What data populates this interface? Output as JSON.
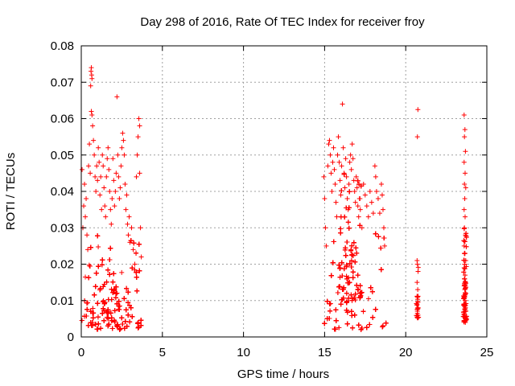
{
  "chart_data": {
    "type": "scatter",
    "title": "Day 298 of 2016, Rate Of TEC Index for receiver froy",
    "xlabel": "GPS time / hours",
    "ylabel": "ROTI / TECUs",
    "xlim": [
      0,
      25
    ],
    "ylim": [
      0,
      0.08
    ],
    "xticks": [
      0,
      5,
      10,
      15,
      20,
      25
    ],
    "yticks": [
      0,
      0.01,
      0.02,
      0.03,
      0.04,
      0.05,
      0.06,
      0.07,
      0.08
    ],
    "xtick_labels": [
      "0",
      "5",
      "10",
      "15",
      "20",
      "25"
    ],
    "ytick_labels": [
      "0",
      "0.01",
      "0.02",
      "0.03",
      "0.04",
      "0.05",
      "0.06",
      "0.07",
      "0.08"
    ],
    "grid": true,
    "marker": "+",
    "color": "#ff0000",
    "series": [
      {
        "name": "ROTI",
        "points": [
          [
            0.05,
            0.046
          ],
          [
            0.1,
            0.03
          ],
          [
            0.15,
            0.036
          ],
          [
            0.2,
            0.042
          ],
          [
            0.25,
            0.033
          ],
          [
            0.3,
            0.038
          ],
          [
            0.35,
            0.028
          ],
          [
            0.4,
            0.024
          ],
          [
            0.45,
            0.047
          ],
          [
            0.5,
            0.053
          ],
          [
            0.55,
            0.045
          ],
          [
            0.58,
            0.069
          ],
          [
            0.6,
            0.073
          ],
          [
            0.62,
            0.074
          ],
          [
            0.64,
            0.072
          ],
          [
            0.66,
            0.071
          ],
          [
            0.62,
            0.062
          ],
          [
            0.66,
            0.061
          ],
          [
            0.7,
            0.058
          ],
          [
            0.75,
            0.054
          ],
          [
            0.8,
            0.05
          ],
          [
            0.85,
            0.044
          ],
          [
            0.9,
            0.04
          ],
          [
            0.95,
            0.047
          ],
          [
            1.0,
            0.043
          ],
          [
            1.05,
            0.052
          ],
          [
            1.1,
            0.048
          ],
          [
            1.15,
            0.039
          ],
          [
            1.2,
            0.044
          ],
          [
            1.25,
            0.035
          ],
          [
            1.3,
            0.05
          ],
          [
            1.35,
            0.047
          ],
          [
            1.4,
            0.041
          ],
          [
            1.45,
            0.036
          ],
          [
            1.5,
            0.033
          ],
          [
            1.55,
            0.044
          ],
          [
            1.6,
            0.049
          ],
          [
            1.65,
            0.052
          ],
          [
            1.7,
            0.046
          ],
          [
            1.75,
            0.04
          ],
          [
            1.8,
            0.035
          ],
          [
            1.85,
            0.031
          ],
          [
            1.9,
            0.038
          ],
          [
            1.95,
            0.049
          ],
          [
            2.0,
            0.043
          ],
          [
            2.05,
            0.036
          ],
          [
            2.1,
            0.04
          ],
          [
            2.15,
            0.045
          ],
          [
            2.2,
            0.066
          ],
          [
            2.25,
            0.05
          ],
          [
            2.3,
            0.044
          ],
          [
            2.35,
            0.038
          ],
          [
            2.4,
            0.041
          ],
          [
            2.45,
            0.047
          ],
          [
            2.5,
            0.052
          ],
          [
            2.55,
            0.056
          ],
          [
            2.6,
            0.054
          ],
          [
            2.65,
            0.05
          ],
          [
            2.7,
            0.042
          ],
          [
            2.75,
            0.035
          ],
          [
            2.8,
            0.039
          ],
          [
            2.85,
            0.031
          ],
          [
            2.9,
            0.028
          ],
          [
            2.95,
            0.033
          ],
          [
            3.0,
            0.026
          ],
          [
            3.1,
            0.03
          ],
          [
            3.2,
            0.024
          ],
          [
            3.3,
            0.02
          ],
          [
            3.4,
            0.044
          ],
          [
            3.45,
            0.05
          ],
          [
            3.5,
            0.055
          ],
          [
            3.55,
            0.06
          ],
          [
            3.6,
            0.058
          ],
          [
            3.6,
            0.045
          ],
          [
            3.65,
            0.03
          ],
          [
            3.7,
            0.022
          ],
          [
            14.95,
            0.044
          ],
          [
            15.0,
            0.038
          ],
          [
            15.05,
            0.03
          ],
          [
            15.1,
            0.025
          ],
          [
            15.2,
            0.047
          ],
          [
            15.25,
            0.053
          ],
          [
            15.3,
            0.054
          ],
          [
            15.35,
            0.05
          ],
          [
            15.4,
            0.045
          ],
          [
            15.45,
            0.04
          ],
          [
            15.5,
            0.048
          ],
          [
            15.55,
            0.052
          ],
          [
            15.6,
            0.046
          ],
          [
            15.65,
            0.042
          ],
          [
            15.7,
            0.037
          ],
          [
            15.75,
            0.033
          ],
          [
            15.8,
            0.05
          ],
          [
            15.85,
            0.055
          ],
          [
            15.9,
            0.048
          ],
          [
            15.95,
            0.043
          ],
          [
            16.0,
            0.039
          ],
          [
            16.05,
            0.047
          ],
          [
            16.1,
            0.064
          ],
          [
            16.15,
            0.052
          ],
          [
            16.2,
            0.045
          ],
          [
            16.25,
            0.041
          ],
          [
            16.3,
            0.049
          ],
          [
            16.35,
            0.044
          ],
          [
            16.4,
            0.038
          ],
          [
            16.45,
            0.035
          ],
          [
            16.5,
            0.042
          ],
          [
            16.55,
            0.048
          ],
          [
            16.6,
            0.05
          ],
          [
            16.65,
            0.046
          ],
          [
            16.7,
            0.053
          ],
          [
            16.75,
            0.049
          ],
          [
            16.8,
            0.043
          ],
          [
            16.85,
            0.04
          ],
          [
            16.9,
            0.037
          ],
          [
            16.95,
            0.044
          ],
          [
            17.0,
            0.041
          ],
          [
            17.05,
            0.036
          ],
          [
            17.1,
            0.033
          ],
          [
            17.15,
            0.038
          ],
          [
            17.2,
            0.035
          ],
          [
            17.3,
            0.03
          ],
          [
            17.4,
            0.042
          ],
          [
            17.5,
            0.039
          ],
          [
            17.6,
            0.036
          ],
          [
            17.7,
            0.033
          ],
          [
            17.8,
            0.04
          ],
          [
            17.9,
            0.037
          ],
          [
            18.0,
            0.034
          ],
          [
            18.1,
            0.047
          ],
          [
            18.15,
            0.044
          ],
          [
            18.2,
            0.04
          ],
          [
            18.3,
            0.038
          ],
          [
            18.4,
            0.034
          ],
          [
            18.5,
            0.042
          ],
          [
            18.55,
            0.039
          ],
          [
            18.6,
            0.035
          ],
          [
            18.65,
            0.03
          ],
          [
            18.7,
            0.025
          ],
          [
            20.75,
            0.0625
          ],
          [
            20.72,
            0.055
          ],
          [
            20.7,
            0.021
          ],
          [
            20.72,
            0.02
          ],
          [
            20.76,
            0.018
          ],
          [
            20.7,
            0.015
          ],
          [
            20.74,
            0.013
          ],
          [
            20.72,
            0.011
          ],
          [
            20.7,
            0.009
          ],
          [
            20.74,
            0.008
          ],
          [
            20.72,
            0.0065
          ],
          [
            20.76,
            0.006
          ],
          [
            20.7,
            0.0055
          ],
          [
            23.6,
            0.061
          ],
          [
            23.65,
            0.057
          ],
          [
            23.62,
            0.055
          ],
          [
            23.68,
            0.051
          ],
          [
            23.6,
            0.048
          ],
          [
            23.66,
            0.045
          ],
          [
            23.62,
            0.042
          ],
          [
            23.7,
            0.041
          ],
          [
            23.64,
            0.038
          ],
          [
            23.6,
            0.035
          ],
          [
            23.66,
            0.033
          ],
          [
            23.62,
            0.03
          ],
          [
            23.68,
            0.028
          ],
          [
            23.6,
            0.025
          ],
          [
            23.64,
            0.023
          ],
          [
            23.7,
            0.021
          ],
          [
            23.6,
            0.019
          ],
          [
            23.66,
            0.017
          ],
          [
            23.62,
            0.016
          ],
          [
            23.68,
            0.015
          ],
          [
            23.6,
            0.014
          ],
          [
            23.64,
            0.013
          ],
          [
            23.7,
            0.012
          ],
          [
            23.62,
            0.011
          ],
          [
            23.66,
            0.01
          ],
          [
            23.6,
            0.009
          ],
          [
            23.68,
            0.008
          ],
          [
            23.64,
            0.007
          ],
          [
            23.6,
            0.006
          ],
          [
            23.7,
            0.005
          ],
          [
            23.66,
            0.0045
          ]
        ],
        "dense_regions": [
          {
            "x": [
              0.0,
              3.7
            ],
            "y": [
              0.003,
              0.028
            ],
            "count": 900
          },
          {
            "x": [
              0.4,
              3.7
            ],
            "y": [
              0.002,
              0.02
            ],
            "count": 500
          },
          {
            "x": [
              14.95,
              18.8
            ],
            "y": [
              0.002,
              0.03
            ],
            "count": 900
          },
          {
            "x": [
              15.8,
              17.3
            ],
            "y": [
              0.01,
              0.045
            ],
            "count": 300
          },
          {
            "x": [
              23.55,
              23.75
            ],
            "y": [
              0.004,
              0.03
            ],
            "count": 120
          },
          {
            "x": [
              20.65,
              20.8
            ],
            "y": [
              0.005,
              0.02
            ],
            "count": 20
          }
        ]
      }
    ]
  }
}
